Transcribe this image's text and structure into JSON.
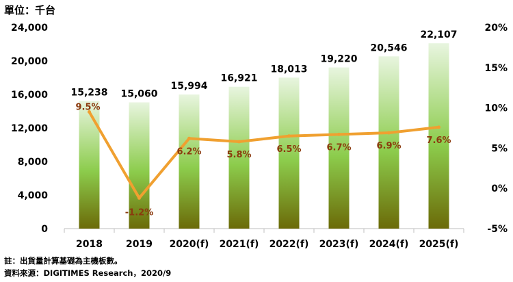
{
  "header": {
    "unit_label": "單位：千台"
  },
  "footer": {
    "note": "註：出貨量計算基礎為主機板數。",
    "source": "資料來源：DIGITIMES Research，2020/9"
  },
  "colors": {
    "bar_top": "#e8f5df",
    "bar_mid": "#8ccc4c",
    "bar_bottom": "#6b6a08",
    "line": "#f0a030",
    "growth_label": "#8b3a0e"
  },
  "chart_data": {
    "type": "bar+line",
    "categories": [
      "2018",
      "2019",
      "2020(f)",
      "2021(f)",
      "2022(f)",
      "2023(f)",
      "2024(f)",
      "2025(f)"
    ],
    "series": [
      {
        "type": "bar",
        "axis": "left",
        "values": [
          15238,
          15060,
          15994,
          16921,
          18013,
          19220,
          20546,
          22107
        ],
        "labels": [
          "15,238",
          "15,060",
          "15,994",
          "16,921",
          "18,013",
          "19,220",
          "20,546",
          "22,107"
        ]
      },
      {
        "type": "line",
        "axis": "right",
        "values": [
          9.5,
          -1.2,
          6.2,
          5.8,
          6.5,
          6.7,
          6.9,
          7.6
        ],
        "labels": [
          "9.5%",
          "-1.2%",
          "6.2%",
          "5.8%",
          "6.5%",
          "6.7%",
          "6.9%",
          "7.6%"
        ]
      }
    ],
    "y_left": {
      "ylim": [
        0,
        24000
      ],
      "ticks": [
        0,
        4000,
        8000,
        12000,
        16000,
        20000,
        24000
      ],
      "tick_labels": [
        "0",
        "4,000",
        "8,000",
        "12,000",
        "16,000",
        "20,000",
        "24,000"
      ]
    },
    "y_right": {
      "ylim": [
        -5,
        20
      ],
      "ticks": [
        -5,
        0,
        5,
        10,
        15,
        20
      ],
      "tick_labels": [
        "-5%",
        "0%",
        "5%",
        "10%",
        "15%",
        "20%"
      ]
    },
    "grid": false,
    "legend": "none"
  }
}
